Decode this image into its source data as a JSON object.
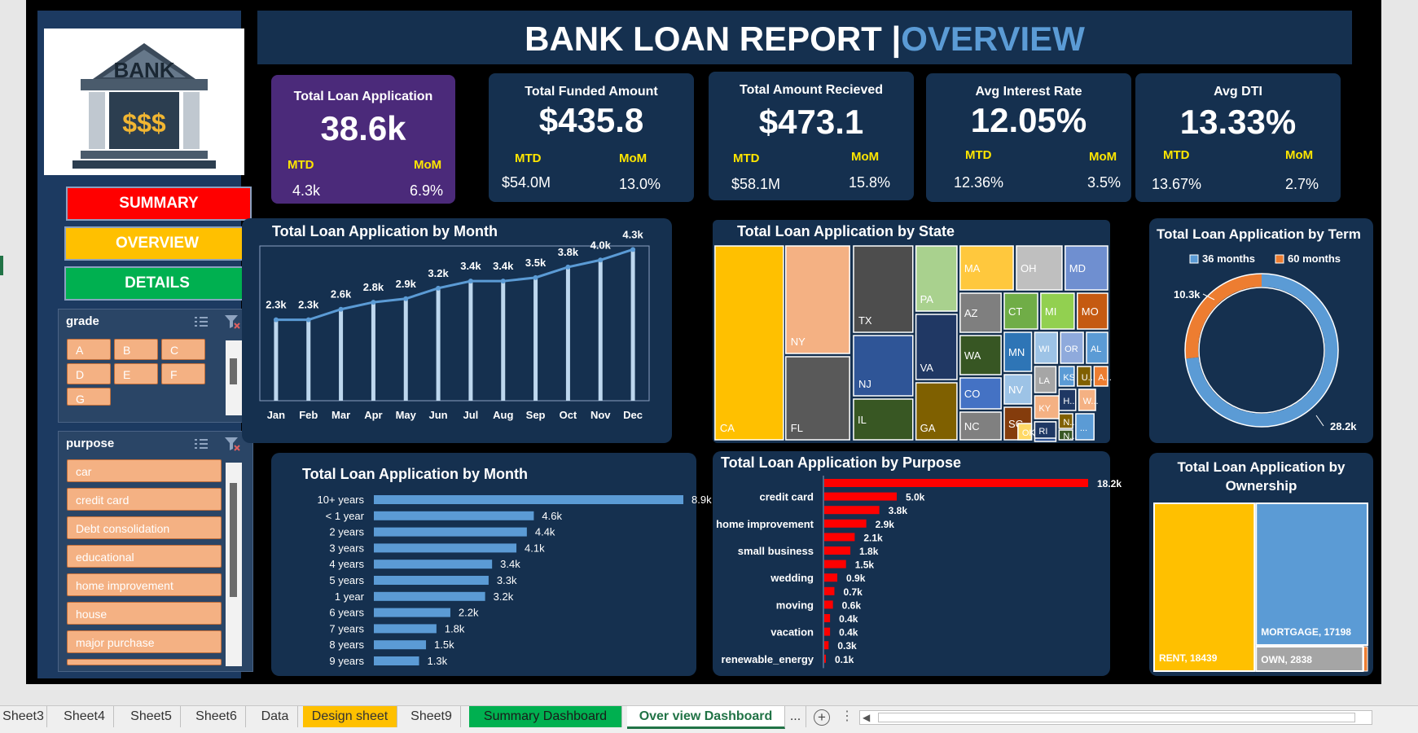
{
  "header": {
    "title_main": "BANK LOAN REPORT |",
    "title_accent": "OVERVIEW"
  },
  "logo": {
    "text": "BANK",
    "money": "$$$"
  },
  "nav": {
    "summary": "SUMMARY",
    "overview": "OVERVIEW",
    "details": "DETAILS"
  },
  "colors": {
    "summary": "#ff0000",
    "overview": "#ffc000",
    "details": "#00b050",
    "accent": "#5b9bd5",
    "purpose_bar": "#ff0000"
  },
  "slicers": {
    "grade": {
      "title": "grade",
      "items": [
        "A",
        "B",
        "C",
        "D",
        "E",
        "F",
        "G"
      ]
    },
    "purpose": {
      "title": "purpose",
      "items": [
        "car",
        "credit card",
        "Debt consolidation",
        "educational",
        "home improvement",
        "house",
        "major purchase"
      ]
    }
  },
  "kpis": [
    {
      "title": "Total Loan Application",
      "value": "38.6k",
      "mtd_label": "MTD",
      "mom_label": "MoM",
      "mtd": "4.3k",
      "mom": "6.9%"
    },
    {
      "title": "Total Funded Amount",
      "value": "$435.8",
      "mtd_label": "MTD",
      "mom_label": "MoM",
      "mtd": "$54.0M",
      "mom": "13.0%"
    },
    {
      "title": "Total Amount Recieved",
      "value": "$473.1",
      "mtd_label": "MTD",
      "mom_label": "MoM",
      "mtd": "$58.1M",
      "mom": "15.8%"
    },
    {
      "title": "Avg Interest Rate",
      "value": "12.05%",
      "mtd_label": "MTD",
      "mom_label": "MoM",
      "mtd": "12.36%",
      "mom": "3.5%"
    },
    {
      "title": "Avg DTI",
      "value": "13.33%",
      "mtd_label": "MTD",
      "mom_label": "MoM",
      "mtd": "13.67%",
      "mom": "2.7%"
    }
  ],
  "chart_data": [
    {
      "type": "line",
      "title": "Total Loan Application by Month",
      "categories": [
        "Jan",
        "Feb",
        "Mar",
        "Apr",
        "May",
        "Jun",
        "Jul",
        "Aug",
        "Sep",
        "Oct",
        "Nov",
        "Dec"
      ],
      "values": [
        2.3,
        2.3,
        2.6,
        2.8,
        2.9,
        3.2,
        3.4,
        3.4,
        3.5,
        3.8,
        4.0,
        4.3
      ],
      "labels": [
        "2.3k",
        "2.3k",
        "2.6k",
        "2.8k",
        "2.9k",
        "3.2k",
        "3.4k",
        "3.4k",
        "3.5k",
        "3.8k",
        "4.0k",
        "4.3k"
      ],
      "ylim": [
        0,
        4.4
      ]
    },
    {
      "type": "treemap",
      "title": "Total Loan Application by State",
      "tiles": [
        {
          "label": "CA",
          "color": "#ffc000"
        },
        {
          "label": "NY",
          "color": "#f4b183"
        },
        {
          "label": "FL",
          "color": "#595959"
        },
        {
          "label": "TX",
          "color": "#4d4d4d"
        },
        {
          "label": "NJ",
          "color": "#2f5597"
        },
        {
          "label": "IL",
          "color": "#385723"
        },
        {
          "label": "PA",
          "color": "#a9d18e"
        },
        {
          "label": "VA",
          "color": "#203864"
        },
        {
          "label": "GA",
          "color": "#7f6000"
        },
        {
          "label": "MA",
          "color": "#ffc83d"
        },
        {
          "label": "OH",
          "color": "#bfbfbf"
        },
        {
          "label": "MD",
          "color": "#6f8fd0"
        },
        {
          "label": "AZ",
          "color": "#7f7f7f"
        },
        {
          "label": "CT",
          "color": "#70ad47"
        },
        {
          "label": "MI",
          "color": "#92d050"
        },
        {
          "label": "MO",
          "color": "#c55a11"
        },
        {
          "label": "WA",
          "color": "#375623"
        },
        {
          "label": "MN",
          "color": "#2e75b6"
        },
        {
          "label": "WI",
          "color": "#9dc3e6"
        },
        {
          "label": "OR",
          "color": "#8faadc"
        },
        {
          "label": "AL",
          "color": "#5b9bd5"
        },
        {
          "label": "CO",
          "color": "#4472c4"
        },
        {
          "label": "NV",
          "color": "#9dc3e6"
        },
        {
          "label": "LA",
          "color": "#a6a6a6"
        },
        {
          "label": "KS",
          "color": "#5b9bd5"
        },
        {
          "label": "U...",
          "color": "#806000"
        },
        {
          "label": "A...",
          "color": "#ed7d31"
        },
        {
          "label": "NC",
          "color": "#808080"
        },
        {
          "label": "SC",
          "color": "#843c0c"
        },
        {
          "label": "KY",
          "color": "#f4b183"
        },
        {
          "label": "D...",
          "color": "#2f5597"
        },
        {
          "label": "H...",
          "color": "#1f3864"
        },
        {
          "label": "W...",
          "color": "#f4b183"
        },
        {
          "label": "OK",
          "color": "#ffd966"
        },
        {
          "label": "RI",
          "color": "#1f3864"
        },
        {
          "label": "N...",
          "color": "#806000"
        },
        {
          "label": "N...",
          "color": "#385723"
        },
        {
          "label": "...",
          "color": "#5b9bd5"
        }
      ]
    },
    {
      "type": "pie",
      "title": "Total Loan Application by Term",
      "legend_position": "top",
      "series": [
        {
          "name": "36 months",
          "value": 28.2,
          "label": "28.2k",
          "color": "#5b9bd5"
        },
        {
          "name": "60 months",
          "value": 10.3,
          "label": "10.3k",
          "color": "#ed7d31"
        }
      ]
    },
    {
      "type": "bar",
      "orientation": "horizontal",
      "title": "Total Loan Application by Month",
      "categories": [
        "10+ years",
        "< 1 year",
        "2 years",
        "3 years",
        "4 years",
        "5 years",
        "1 year",
        "6 years",
        "7 years",
        "8 years",
        "9 years"
      ],
      "values": [
        8.9,
        4.6,
        4.4,
        4.1,
        3.4,
        3.3,
        3.2,
        2.2,
        1.8,
        1.5,
        1.3
      ],
      "labels": [
        "8.9k",
        "4.6k",
        "4.4k",
        "4.1k",
        "3.4k",
        "3.3k",
        "3.2k",
        "2.2k",
        "1.8k",
        "1.5k",
        "1.3k"
      ]
    },
    {
      "type": "bar",
      "orientation": "horizontal",
      "title": "Total Loan Application by Purpose",
      "categories": [
        "",
        "credit card",
        "",
        "home improvement",
        "",
        "small business",
        "",
        "wedding",
        "",
        "moving",
        "",
        "vacation",
        "",
        "renewable_energy"
      ],
      "values": [
        18.2,
        5.0,
        3.8,
        2.9,
        2.1,
        1.8,
        1.5,
        0.9,
        0.7,
        0.6,
        0.4,
        0.4,
        0.3,
        0.1
      ],
      "labels": [
        "18.2k",
        "5.0k",
        "3.8k",
        "2.9k",
        "2.1k",
        "1.8k",
        "1.5k",
        "0.9k",
        "0.7k",
        "0.6k",
        "0.4k",
        "0.4k",
        "0.3k",
        "0.1k"
      ]
    },
    {
      "type": "treemap",
      "title": "Total Loan Application by Ownership",
      "tiles": [
        {
          "label": "RENT, 18439",
          "value": 18439,
          "color": "#ffc000"
        },
        {
          "label": "MORTGAGE, 17198",
          "value": 17198,
          "color": "#5b9bd5"
        },
        {
          "label": "OWN, 2838",
          "value": 2838,
          "color": "#a5a5a5"
        },
        {
          "label": "",
          "value": 98,
          "color": "#ed7d31"
        }
      ]
    }
  ],
  "tabs": [
    "Sheet3",
    "Sheet4",
    "Sheet5",
    "Sheet6",
    "Data",
    "Design sheet",
    "Sheet9",
    "Summary Dashboard",
    "Over view Dashboard",
    "..."
  ]
}
